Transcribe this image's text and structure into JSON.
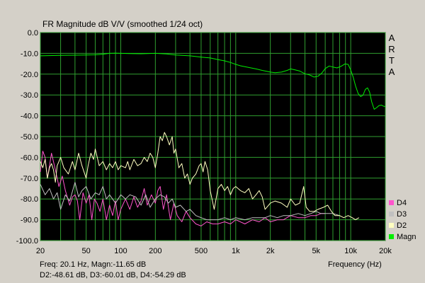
{
  "chart_data": {
    "type": "line",
    "title": "FR Magnitude dB V/V (smoothed 1/24 oct)",
    "xlabel": "Frequency (Hz)",
    "ylabel": "",
    "x_scale": "log",
    "xlim": [
      20,
      20000
    ],
    "ylim": [
      -100,
      0
    ],
    "x_ticks": [
      20,
      50,
      100,
      200,
      500,
      1000,
      2000,
      5000,
      10000,
      20000
    ],
    "x_tick_labels": [
      "20",
      "50",
      "100",
      "200",
      "500",
      "1k",
      "2k",
      "5k",
      "10k",
      "20k"
    ],
    "y_ticks": [
      0,
      -10,
      -20,
      -30,
      -40,
      -50,
      -60,
      -70,
      -80,
      -90,
      -100
    ],
    "y_tick_labels": [
      "0.0",
      "-10.0",
      "-20.0",
      "-30.0",
      "-40.0",
      "-50.0",
      "-60.0",
      "-70.0",
      "-80.0",
      "-90.0",
      "-100.0"
    ],
    "grid": true,
    "legend_position": "bottom-right",
    "watermark_letters": [
      "A",
      "R",
      "T",
      "A"
    ],
    "series": [
      {
        "name": "D4",
        "color": "#ff55cc",
        "points": [
          [
            20,
            -67
          ],
          [
            21,
            -57
          ],
          [
            22,
            -60
          ],
          [
            23,
            -70
          ],
          [
            24,
            -64
          ],
          [
            25,
            -58
          ],
          [
            27,
            -66
          ],
          [
            29,
            -74
          ],
          [
            31,
            -69
          ],
          [
            33,
            -76
          ],
          [
            36,
            -83
          ],
          [
            38,
            -79
          ],
          [
            40,
            -78
          ],
          [
            42,
            -81
          ],
          [
            44,
            -90
          ],
          [
            47,
            -77
          ],
          [
            50,
            -82
          ],
          [
            53,
            -78
          ],
          [
            56,
            -90
          ],
          [
            59,
            -80
          ],
          [
            62,
            -82
          ],
          [
            66,
            -86
          ],
          [
            70,
            -80
          ],
          [
            75,
            -90
          ],
          [
            80,
            -83
          ],
          [
            85,
            -88
          ],
          [
            90,
            -81
          ],
          [
            95,
            -90
          ],
          [
            100,
            -85
          ],
          [
            110,
            -80
          ],
          [
            120,
            -85
          ],
          [
            130,
            -79
          ],
          [
            140,
            -84
          ],
          [
            150,
            -81
          ],
          [
            160,
            -75
          ],
          [
            170,
            -83
          ],
          [
            185,
            -78
          ],
          [
            200,
            -82
          ],
          [
            210,
            -76
          ],
          [
            220,
            -74
          ],
          [
            235,
            -85
          ],
          [
            250,
            -78
          ],
          [
            270,
            -90
          ],
          [
            290,
            -82
          ],
          [
            310,
            -88
          ],
          [
            340,
            -91
          ],
          [
            370,
            -86
          ],
          [
            400,
            -89
          ],
          [
            450,
            -92
          ],
          [
            500,
            -93
          ],
          [
            560,
            -91
          ],
          [
            630,
            -92
          ],
          [
            700,
            -92
          ],
          [
            800,
            -91
          ],
          [
            900,
            -92
          ],
          [
            1000,
            -90
          ],
          [
            1200,
            -92
          ],
          [
            1400,
            -90
          ],
          [
            1600,
            -91
          ],
          [
            1800,
            -89
          ],
          [
            2000,
            -91
          ],
          [
            2300,
            -90
          ],
          [
            2600,
            -90
          ],
          [
            3000,
            -88
          ],
          [
            3500,
            -89
          ],
          [
            4000,
            -89
          ],
          [
            4500,
            -88
          ],
          [
            5000,
            -88
          ],
          [
            5500,
            -87
          ],
          [
            6000,
            -87
          ]
        ]
      },
      {
        "name": "D3",
        "color": "#c0c0c0",
        "points": [
          [
            20,
            -73
          ],
          [
            22,
            -78
          ],
          [
            24,
            -75
          ],
          [
            26,
            -80
          ],
          [
            28,
            -77
          ],
          [
            30,
            -85
          ],
          [
            33,
            -78
          ],
          [
            36,
            -81
          ],
          [
            40,
            -72
          ],
          [
            43,
            -79
          ],
          [
            46,
            -76
          ],
          [
            50,
            -74
          ],
          [
            55,
            -80
          ],
          [
            60,
            -77
          ],
          [
            65,
            -78
          ],
          [
            70,
            -74
          ],
          [
            75,
            -80
          ],
          [
            80,
            -78
          ],
          [
            90,
            -82
          ],
          [
            100,
            -78
          ],
          [
            110,
            -80
          ],
          [
            120,
            -78
          ],
          [
            135,
            -79
          ],
          [
            150,
            -83
          ],
          [
            165,
            -78
          ],
          [
            180,
            -84
          ],
          [
            200,
            -80
          ],
          [
            220,
            -78
          ],
          [
            240,
            -79
          ],
          [
            260,
            -82
          ],
          [
            280,
            -80
          ],
          [
            300,
            -84
          ],
          [
            330,
            -83
          ],
          [
            370,
            -86
          ],
          [
            400,
            -85
          ],
          [
            450,
            -88
          ],
          [
            500,
            -89
          ],
          [
            560,
            -90
          ],
          [
            630,
            -90
          ],
          [
            700,
            -90
          ],
          [
            800,
            -89
          ],
          [
            900,
            -90
          ],
          [
            1000,
            -89
          ],
          [
            1200,
            -90
          ],
          [
            1400,
            -89
          ],
          [
            1600,
            -89
          ],
          [
            1800,
            -89
          ],
          [
            2000,
            -88
          ],
          [
            2300,
            -89
          ],
          [
            2600,
            -88
          ],
          [
            3000,
            -88
          ],
          [
            3500,
            -87
          ],
          [
            4000,
            -88
          ],
          [
            4500,
            -87
          ],
          [
            5000,
            -86
          ],
          [
            5500,
            -87
          ],
          [
            6000,
            -87
          ],
          [
            7000,
            -87
          ],
          [
            8000,
            -88
          ]
        ]
      },
      {
        "name": "D2",
        "color": "#ffffc0",
        "points": [
          [
            20,
            -62
          ],
          [
            21,
            -65
          ],
          [
            22,
            -61
          ],
          [
            23,
            -70
          ],
          [
            24,
            -65
          ],
          [
            25,
            -63
          ],
          [
            26,
            -66
          ],
          [
            27,
            -72
          ],
          [
            28,
            -64
          ],
          [
            30,
            -60
          ],
          [
            32,
            -65
          ],
          [
            35,
            -68
          ],
          [
            38,
            -62
          ],
          [
            40,
            -66
          ],
          [
            43,
            -58
          ],
          [
            46,
            -64
          ],
          [
            50,
            -70
          ],
          [
            52,
            -64
          ],
          [
            55,
            -58
          ],
          [
            58,
            -61
          ],
          [
            60,
            -56
          ],
          [
            65,
            -64
          ],
          [
            70,
            -62
          ],
          [
            75,
            -66
          ],
          [
            80,
            -63
          ],
          [
            85,
            -65
          ],
          [
            90,
            -62
          ],
          [
            95,
            -66
          ],
          [
            100,
            -64
          ],
          [
            110,
            -65
          ],
          [
            115,
            -62
          ],
          [
            120,
            -66
          ],
          [
            130,
            -61
          ],
          [
            140,
            -64
          ],
          [
            150,
            -63
          ],
          [
            160,
            -60
          ],
          [
            170,
            -62
          ],
          [
            180,
            -58
          ],
          [
            190,
            -60
          ],
          [
            200,
            -65
          ],
          [
            210,
            -58
          ],
          [
            220,
            -50
          ],
          [
            230,
            -52
          ],
          [
            240,
            -48
          ],
          [
            250,
            -50
          ],
          [
            265,
            -54
          ],
          [
            280,
            -50
          ],
          [
            290,
            -58
          ],
          [
            300,
            -56
          ],
          [
            320,
            -65
          ],
          [
            340,
            -63
          ],
          [
            360,
            -70
          ],
          [
            380,
            -68
          ],
          [
            400,
            -73
          ],
          [
            420,
            -70
          ],
          [
            450,
            -68
          ],
          [
            480,
            -64
          ],
          [
            500,
            -63
          ],
          [
            520,
            -67
          ],
          [
            540,
            -62
          ],
          [
            570,
            -66
          ],
          [
            600,
            -76
          ],
          [
            650,
            -85
          ],
          [
            700,
            -75
          ],
          [
            750,
            -73
          ],
          [
            800,
            -76
          ],
          [
            850,
            -74
          ],
          [
            900,
            -78
          ],
          [
            950,
            -75
          ],
          [
            1000,
            -74
          ],
          [
            1100,
            -76
          ],
          [
            1200,
            -77
          ],
          [
            1300,
            -75
          ],
          [
            1400,
            -80
          ],
          [
            1500,
            -78
          ],
          [
            1600,
            -76
          ],
          [
            1700,
            -79
          ],
          [
            1800,
            -85
          ],
          [
            2000,
            -82
          ],
          [
            2200,
            -81
          ],
          [
            2500,
            -82
          ],
          [
            2800,
            -84
          ],
          [
            3000,
            -80
          ],
          [
            3300,
            -83
          ],
          [
            3600,
            -82
          ],
          [
            3900,
            -74
          ],
          [
            4100,
            -84
          ],
          [
            4400,
            -86
          ],
          [
            4800,
            -86
          ],
          [
            5200,
            -85
          ],
          [
            5800,
            -84
          ],
          [
            6300,
            -83
          ],
          [
            6800,
            -86
          ],
          [
            7300,
            -88
          ],
          [
            8000,
            -88
          ],
          [
            8700,
            -89
          ],
          [
            9500,
            -88
          ],
          [
            10300,
            -89
          ],
          [
            11000,
            -90
          ],
          [
            11800,
            -89
          ]
        ]
      },
      {
        "name": "Magn",
        "color": "#00ee00",
        "points": [
          [
            20,
            -11.2
          ],
          [
            30,
            -11.0
          ],
          [
            40,
            -10.9
          ],
          [
            50,
            -10.8
          ],
          [
            60,
            -10.7
          ],
          [
            70,
            -10.4
          ],
          [
            80,
            -10.0
          ],
          [
            90,
            -9.9
          ],
          [
            100,
            -10.0
          ],
          [
            120,
            -10.1
          ],
          [
            150,
            -10.2
          ],
          [
            200,
            -10.0
          ],
          [
            250,
            -10.3
          ],
          [
            300,
            -10.8
          ],
          [
            400,
            -11.2
          ],
          [
            500,
            -11.8
          ],
          [
            600,
            -12.2
          ],
          [
            700,
            -13.0
          ],
          [
            800,
            -13.6
          ],
          [
            900,
            -14.4
          ],
          [
            1000,
            -15.3
          ],
          [
            1100,
            -16.0
          ],
          [
            1300,
            -16.8
          ],
          [
            1500,
            -17.5
          ],
          [
            1700,
            -18.2
          ],
          [
            2000,
            -19.0
          ],
          [
            2200,
            -19.3
          ],
          [
            2500,
            -19.0
          ],
          [
            2800,
            -18.2
          ],
          [
            3000,
            -17.5
          ],
          [
            3300,
            -18.0
          ],
          [
            3600,
            -18.5
          ],
          [
            4000,
            -19.8
          ],
          [
            4400,
            -20.4
          ],
          [
            4800,
            -21.4
          ],
          [
            5200,
            -21.0
          ],
          [
            5600,
            -19.5
          ],
          [
            6000,
            -17.3
          ],
          [
            6500,
            -16.1
          ],
          [
            7000,
            -16.6
          ],
          [
            7600,
            -17.0
          ],
          [
            8200,
            -16.3
          ],
          [
            8900,
            -15.1
          ],
          [
            9500,
            -15.3
          ],
          [
            10000,
            -18.0
          ],
          [
            10500,
            -21.4
          ],
          [
            11000,
            -25.6
          ],
          [
            11600,
            -29.3
          ],
          [
            12200,
            -30.8
          ],
          [
            12800,
            -30.1
          ],
          [
            13400,
            -27.3
          ],
          [
            14000,
            -26.6
          ],
          [
            14600,
            -28.6
          ],
          [
            15200,
            -33.3
          ],
          [
            16000,
            -36.9
          ],
          [
            16800,
            -36.1
          ],
          [
            17600,
            -35.1
          ],
          [
            18500,
            -34.9
          ],
          [
            19300,
            -35.4
          ],
          [
            20000,
            -35.6
          ]
        ]
      }
    ],
    "readout": {
      "line1": "Freq: 20.1 Hz, Magn:-11.65 dB",
      "line2": "D2:-48.61 dB, D3:-60.01 dB, D4:-54.29 dB"
    }
  }
}
